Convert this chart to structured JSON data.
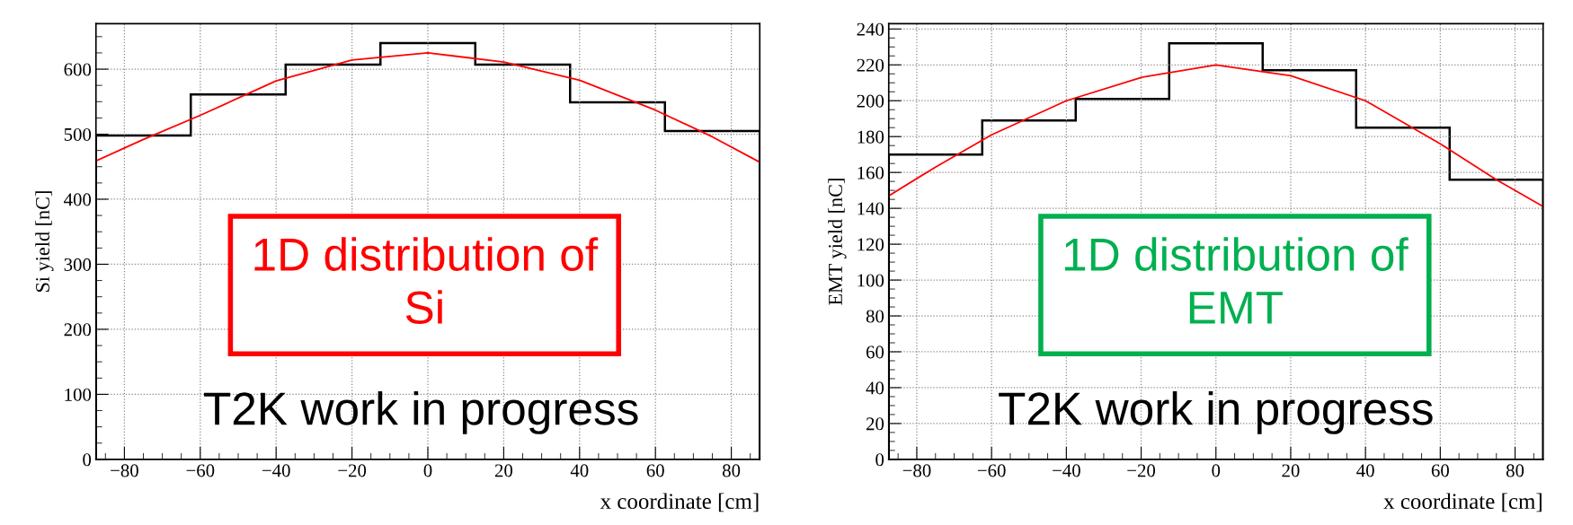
{
  "chart_data": [
    {
      "type": "histogram",
      "ylabel": "Si yield [nC]",
      "xlabel": "x coordinate [cm]",
      "bins": [
        -87.5,
        -62.5,
        -37.5,
        -12.5,
        12.5,
        37.5,
        62.5,
        87.5
      ],
      "values": [
        498,
        561,
        607,
        640,
        607,
        549,
        505
      ],
      "color": "#000000",
      "series": [
        {
          "type": "line",
          "color": "#ff0000",
          "x": [
            -87.5,
            -75,
            -60,
            -40,
            -20,
            0,
            20,
            40,
            60,
            75,
            87.5
          ],
          "values": [
            459,
            492,
            529,
            582,
            614,
            625,
            611,
            583,
            537,
            496,
            457
          ]
        }
      ],
      "xlim": [
        -87.5,
        87.5
      ],
      "ylim": [
        0,
        670
      ],
      "xticks": [
        {
          "value": -80,
          "label": "−80"
        },
        {
          "value": -60,
          "label": "−60"
        },
        {
          "value": -40,
          "label": "−40"
        },
        {
          "value": -20,
          "label": "−20"
        },
        0,
        20,
        40,
        60,
        80
      ],
      "yticks": [
        0,
        100,
        200,
        300,
        400,
        500,
        600
      ],
      "grid": true,
      "annotations": [
        "1D distribution of\nSi",
        "T2K work in progress"
      ]
    },
    {
      "type": "histogram",
      "ylabel": "EMT yield [nC]",
      "xlabel": "x coordinate [cm]",
      "bins": [
        -87.5,
        -62.5,
        -37.5,
        -12.5,
        12.5,
        37.5,
        62.5,
        87.5
      ],
      "values": [
        170,
        189,
        201,
        232,
        217,
        185,
        156
      ],
      "color": "#000000",
      "series": [
        {
          "type": "line",
          "color": "#ff0000",
          "x": [
            -87.5,
            -75,
            -60,
            -40,
            -20,
            0,
            20,
            40,
            60,
            75,
            87.5
          ],
          "values": [
            147,
            163,
            181,
            200,
            213,
            220,
            214,
            200,
            176,
            156,
            141
          ]
        }
      ],
      "xlim": [
        -87.5,
        87.5
      ],
      "ylim": [
        0,
        243
      ],
      "xticks": [
        {
          "value": -80,
          "label": "−80"
        },
        {
          "value": -60,
          "label": "−60"
        },
        {
          "value": -40,
          "label": "−40"
        },
        {
          "value": -20,
          "label": "−20"
        },
        0,
        20,
        40,
        60,
        80
      ],
      "yticks": [
        0,
        20,
        40,
        60,
        80,
        100,
        120,
        140,
        160,
        180,
        200,
        220,
        240
      ],
      "grid": true,
      "annotations": [
        "1D distribution of\nEMT",
        "T2K work in progress"
      ]
    }
  ]
}
